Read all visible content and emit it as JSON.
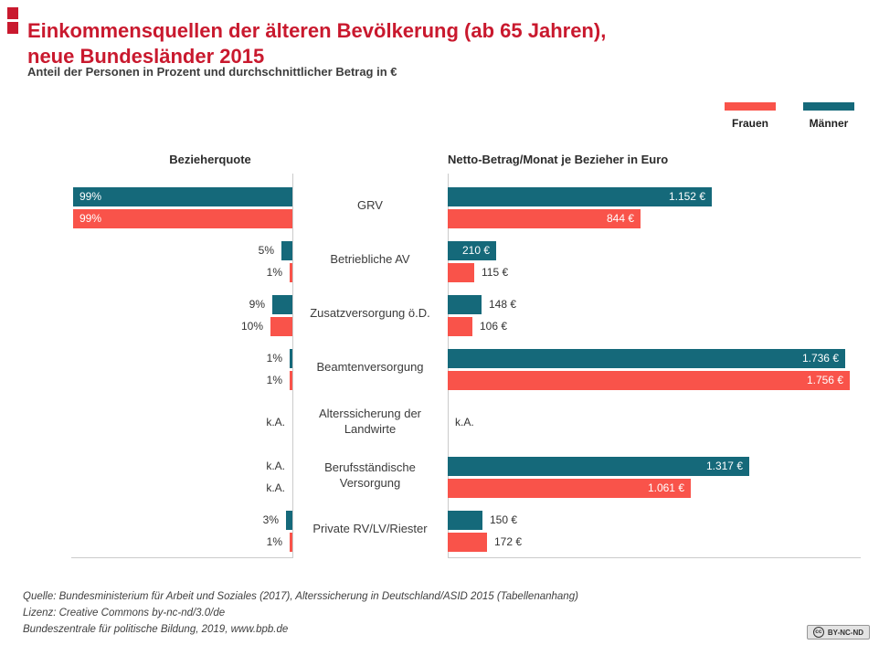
{
  "header": {
    "title_line1": "Einkommensquellen der älteren Bevölkerung (ab 65 Jahren),",
    "title_line2": "neue Bundesländer 2015",
    "subtitle": "Anteil der Personen in Prozent und durchschnittlicher Betrag in €"
  },
  "legend": {
    "frauen": "Frauen",
    "maenner": "Männer"
  },
  "colors": {
    "brand_red": "#c9192e",
    "frauen": "#f9534a",
    "maenner": "#15697a",
    "axis_gray": "#cbcbcb"
  },
  "chart_data": {
    "type": "bar",
    "layout": "diverging-horizontal",
    "left_axis_title": "Bezieherquote",
    "right_axis_title": "Netto-Betrag/Monat je Bezieher in Euro",
    "series": [
      "Männer",
      "Frauen"
    ],
    "left_unit": "%",
    "right_unit": "€",
    "left_max": 99,
    "right_max": 1756,
    "na_text": "k.A.",
    "categories": [
      "GRV",
      "Betriebliche AV",
      "Zusatzversorgung ö.D.",
      "Beamtenversorgung",
      "Alterssicherung der Landwirte",
      "Berufsständische Versorgung",
      "Private RV/LV/Riester"
    ],
    "rows": [
      {
        "category": "GRV",
        "quote": {
          "bars": [
            {
              "series": "Männer",
              "value": 99,
              "label": "99%"
            },
            {
              "series": "Frauen",
              "value": 99,
              "label": "99%"
            }
          ]
        },
        "amount": {
          "bars": [
            {
              "series": "Männer",
              "value": 1152,
              "label": "1.152 €"
            },
            {
              "series": "Frauen",
              "value": 844,
              "label": "844 €"
            }
          ]
        }
      },
      {
        "category": "Betriebliche AV",
        "quote": {
          "bars": [
            {
              "series": "Männer",
              "value": 5,
              "label": "5%"
            },
            {
              "series": "Frauen",
              "value": 1,
              "label": "1%"
            }
          ]
        },
        "amount": {
          "bars": [
            {
              "series": "Männer",
              "value": 210,
              "label": "210 €"
            },
            {
              "series": "Frauen",
              "value": 115,
              "label": "115 €"
            }
          ]
        }
      },
      {
        "category": "Zusatzversorgung ö.D.",
        "quote": {
          "bars": [
            {
              "series": "Männer",
              "value": 9,
              "label": "9%"
            },
            {
              "series": "Frauen",
              "value": 10,
              "label": "10%"
            }
          ]
        },
        "amount": {
          "bars": [
            {
              "series": "Männer",
              "value": 148,
              "label": "148 €"
            },
            {
              "series": "Frauen",
              "value": 106,
              "label": "106 €"
            }
          ]
        }
      },
      {
        "category": "Beamtenversorgung",
        "quote": {
          "bars": [
            {
              "series": "Männer",
              "value": 1,
              "label": "1%"
            },
            {
              "series": "Frauen",
              "value": 1,
              "label": "1%"
            }
          ]
        },
        "amount": {
          "bars": [
            {
              "series": "Männer",
              "value": 1736,
              "label": "1.736 €"
            },
            {
              "series": "Frauen",
              "value": 1756,
              "label": "1.756 €"
            }
          ]
        }
      },
      {
        "category": "Alterssicherung der Landwirte",
        "quote": {
          "na": "k.A."
        },
        "amount": {
          "na": "k.A."
        }
      },
      {
        "category": "Berufsständische Versorgung",
        "quote": {
          "bars": [
            {
              "series": "Männer",
              "value": null,
              "label": "k.A."
            },
            {
              "series": "Frauen",
              "value": null,
              "label": "k.A."
            }
          ]
        },
        "amount": {
          "bars": [
            {
              "series": "Männer",
              "value": 1317,
              "label": "1.317 €"
            },
            {
              "series": "Frauen",
              "value": 1061,
              "label": "1.061 €"
            }
          ]
        }
      },
      {
        "category": "Private RV/LV/Riester",
        "quote": {
          "bars": [
            {
              "series": "Männer",
              "value": 3,
              "label": "3%"
            },
            {
              "series": "Frauen",
              "value": 1,
              "label": "1%"
            }
          ]
        },
        "amount": {
          "bars": [
            {
              "series": "Männer",
              "value": 150,
              "label": "150 €"
            },
            {
              "series": "Frauen",
              "value": 172,
              "label": "172 €"
            }
          ]
        }
      }
    ]
  },
  "footer": {
    "line1": "Quelle: Bundesministerium für Arbeit und Soziales (2017), Alterssicherung in Deutschland/ASID 2015 (Tabellenanhang)",
    "line2": "Lizenz: Creative Commons by-nc-nd/3.0/de",
    "line3": "Bundeszentrale für politische Bildung, 2019, www.bpb.de"
  },
  "cc_badge": "BY-NC-ND"
}
